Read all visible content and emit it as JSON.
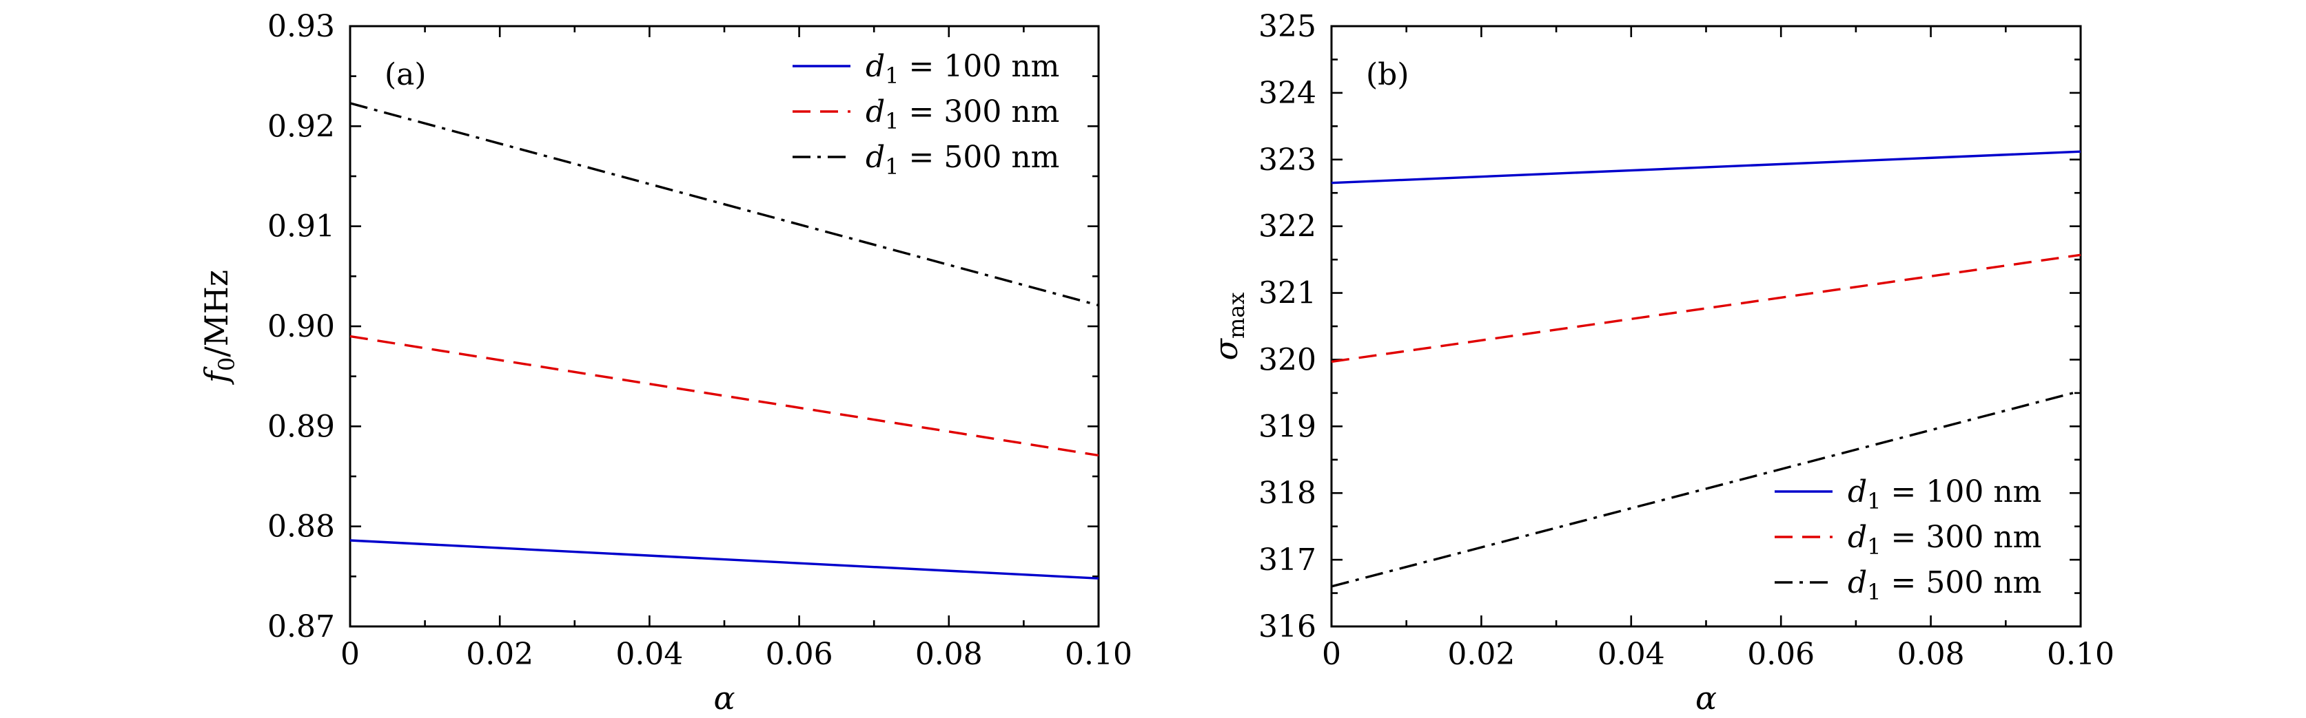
{
  "chart_data": [
    {
      "type": "line",
      "panel_label": "(a)",
      "xlabel": "α",
      "ylabel_main": "f",
      "ylabel_sub": "0",
      "ylabel_unit": "/MHz",
      "xlim": [
        0,
        0.1
      ],
      "ylim": [
        0.87,
        0.93
      ],
      "xticks": [
        0,
        0.02,
        0.04,
        0.06,
        0.08,
        0.1
      ],
      "xtick_labels": [
        "0",
        "0.02",
        "0.04",
        "0.06",
        "0.08",
        "0.10"
      ],
      "yticks": [
        0.87,
        0.88,
        0.89,
        0.9,
        0.91,
        0.92,
        0.93
      ],
      "ytick_labels": [
        "0.87",
        "0.88",
        "0.89",
        "0.90",
        "0.91",
        "0.92",
        "0.93"
      ],
      "legend_position": "top-right",
      "series": [
        {
          "name": "d1 = 100 nm",
          "var": "d",
          "sub": "1",
          "value_text": " = 100 nm",
          "color": "#0000cc",
          "style": "solid",
          "x": [
            0,
            0.1
          ],
          "y": [
            0.8786,
            0.8748
          ]
        },
        {
          "name": "d1 = 300 nm",
          "var": "d",
          "sub": "1",
          "value_text": " = 300 nm",
          "color": "#e00000",
          "style": "dashed",
          "x": [
            0,
            0.1
          ],
          "y": [
            0.899,
            0.8871
          ]
        },
        {
          "name": "d1 = 500 nm",
          "var": "d",
          "sub": "1",
          "value_text": " = 500 nm",
          "color": "#000000",
          "style": "dashdot",
          "x": [
            0,
            0.1
          ],
          "y": [
            0.9223,
            0.9021
          ]
        }
      ]
    },
    {
      "type": "line",
      "panel_label": "(b)",
      "xlabel": "α",
      "ylabel_main": "σ",
      "ylabel_sub": "max",
      "ylabel_unit": "",
      "xlim": [
        0,
        0.1
      ],
      "ylim": [
        316,
        325
      ],
      "xticks": [
        0,
        0.02,
        0.04,
        0.06,
        0.08,
        0.1
      ],
      "xtick_labels": [
        "0",
        "0.02",
        "0.04",
        "0.06",
        "0.08",
        "0.10"
      ],
      "yticks": [
        316,
        317,
        318,
        319,
        320,
        321,
        322,
        323,
        324,
        325
      ],
      "ytick_labels": [
        "316",
        "317",
        "318",
        "319",
        "320",
        "321",
        "322",
        "323",
        "324",
        "325"
      ],
      "legend_position": "bottom-right",
      "series": [
        {
          "name": "d1 = 100 nm",
          "var": "d",
          "sub": "1",
          "value_text": " = 100 nm",
          "color": "#0000cc",
          "style": "solid",
          "x": [
            0,
            0.1
          ],
          "y": [
            322.65,
            323.12
          ]
        },
        {
          "name": "d1 = 300 nm",
          "var": "d",
          "sub": "1",
          "value_text": " = 300 nm",
          "color": "#e00000",
          "style": "dashed",
          "x": [
            0,
            0.1
          ],
          "y": [
            319.97,
            321.57
          ]
        },
        {
          "name": "d1 = 500 nm",
          "var": "d",
          "sub": "1",
          "value_text": " = 500 nm",
          "color": "#000000",
          "style": "dashdot",
          "x": [
            0,
            0.1
          ],
          "y": [
            316.6,
            319.53
          ]
        }
      ]
    }
  ]
}
